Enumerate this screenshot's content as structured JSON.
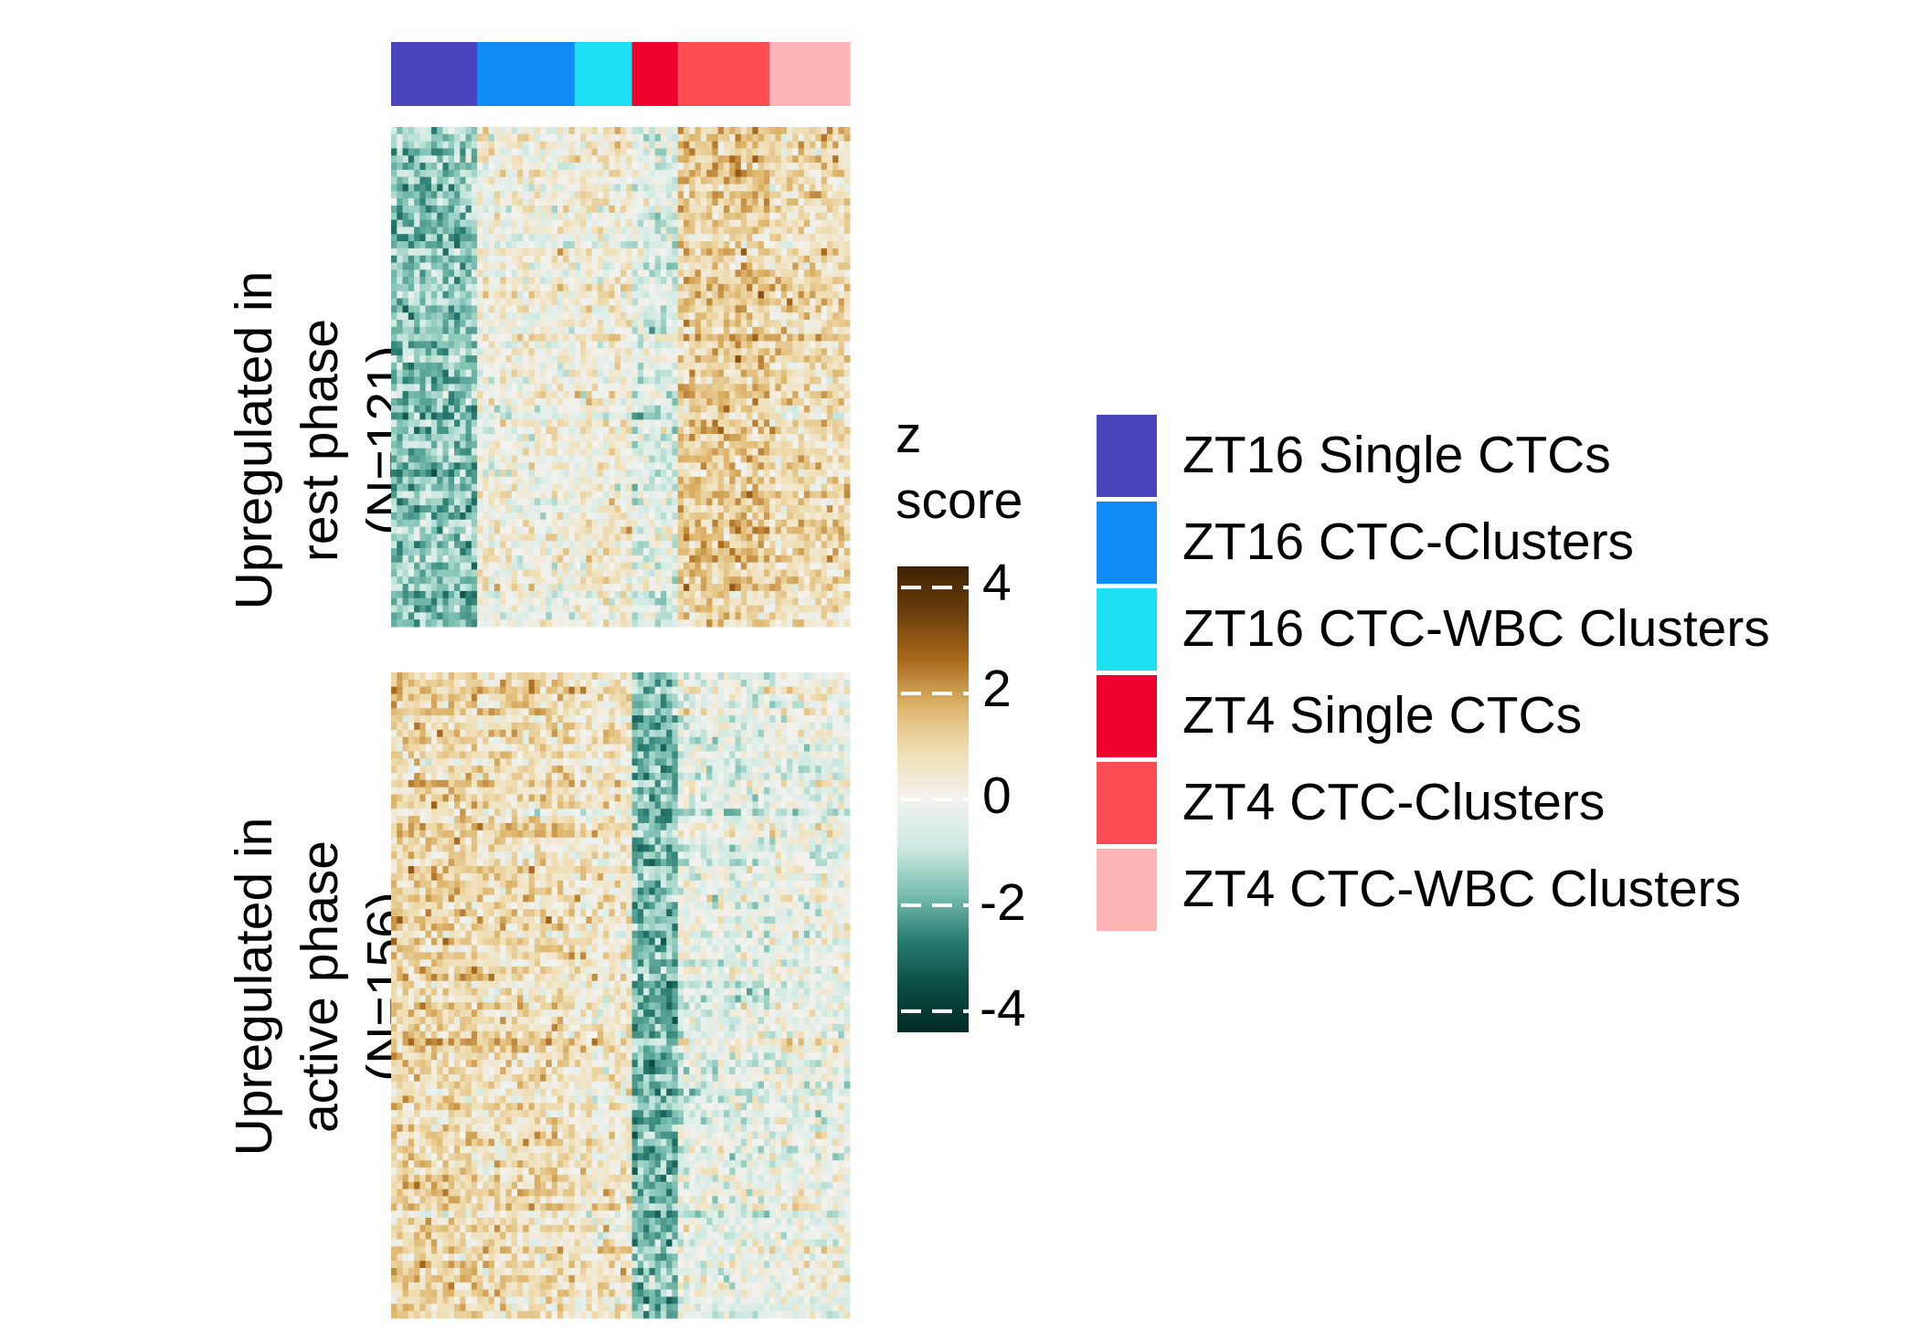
{
  "chart_data": {
    "type": "heatmap",
    "column_groups": [
      {
        "name": "ZT16 Single CTCs",
        "color": "#4A44BD",
        "n_columns": 15
      },
      {
        "name": "ZT16 CTC-Clusters",
        "color": "#118CF7",
        "n_columns": 17
      },
      {
        "name": "ZT16 CTC-WBC Clusters",
        "color": "#1DE0F3",
        "n_columns": 10
      },
      {
        "name": "ZT4 Single CTCs",
        "color": "#F0022F",
        "n_columns": 8
      },
      {
        "name": "ZT4 CTC-Clusters",
        "color": "#FD4C52",
        "n_columns": 16
      },
      {
        "name": "ZT4 CTC-WBC Clusters",
        "color": "#FDB4B5",
        "n_columns": 14
      }
    ],
    "row_groups": [
      {
        "label_lines": [
          "Upregulated in",
          "rest phase",
          "(N=121)"
        ],
        "n_rows": 121,
        "group_mean_z": [
          -1.6,
          0.1,
          0.3,
          -0.5,
          1.2,
          0.8
        ]
      },
      {
        "label_lines": [
          "Upregulated in",
          "active phase",
          "(N=156)"
        ],
        "n_rows": 156,
        "group_mean_z": [
          1.0,
          0.8,
          0.5,
          -1.8,
          -0.3,
          -0.1
        ]
      }
    ],
    "colorbar": {
      "title_lines": [
        "z",
        "score"
      ],
      "range": [
        -4.4,
        4.4
      ],
      "ticks": [
        4,
        2,
        0,
        -2,
        -4
      ],
      "tick_labels": [
        "4",
        "2",
        "0",
        "-2",
        "-4"
      ],
      "colors": [
        "#032B25",
        "#0A4D44",
        "#2B7E72",
        "#7CC0B2",
        "#CFEAE2",
        "#F2F2F0",
        "#F0DFB5",
        "#DDB46A",
        "#A9691C",
        "#6B3E0B",
        "#3E2204"
      ]
    },
    "legend": {
      "placement": "right"
    }
  }
}
